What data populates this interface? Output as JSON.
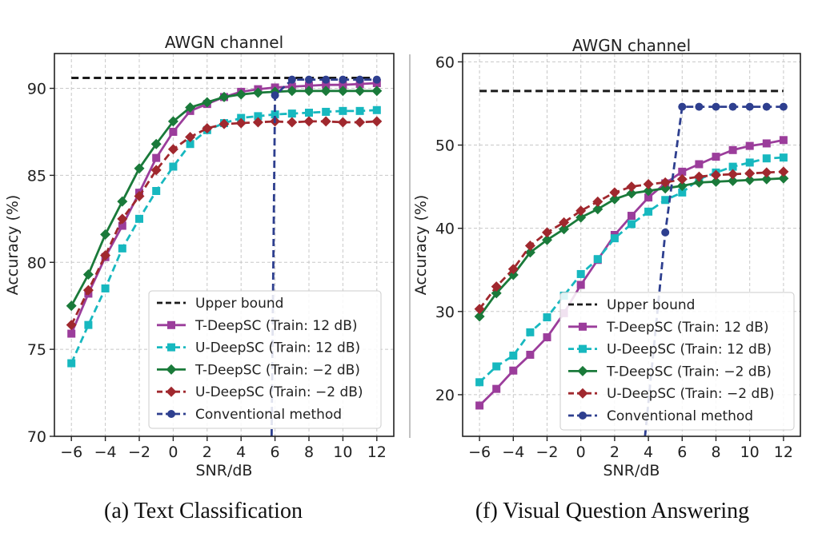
{
  "separator": true,
  "chart_data": [
    {
      "type": "line",
      "title": "AWGN channel",
      "caption": "(a) Text Classification",
      "xlabel": "SNR/dB",
      "ylabel": "Accuracy (%)",
      "xlim": [
        -7,
        13
      ],
      "ylim": [
        70,
        92
      ],
      "xticks": [
        -6,
        -4,
        -2,
        0,
        2,
        4,
        6,
        8,
        10,
        12
      ],
      "xtick_labels": [
        "−6",
        "−4",
        "−2",
        "0",
        "2",
        "4",
        "6",
        "8",
        "10",
        "12"
      ],
      "yticks": [
        70,
        75,
        80,
        85,
        90
      ],
      "ytick_labels": [
        "70",
        "75",
        "80",
        "85",
        "90"
      ],
      "grid": true,
      "legend_position": "lower-right",
      "series": [
        {
          "name": "Upper bound",
          "color": "#1a1a1a",
          "dash": "dashed",
          "marker": "none",
          "x": [
            -6,
            12
          ],
          "y": [
            90.6,
            90.6
          ]
        },
        {
          "name": "T-DeepSC (Train: 12 dB)",
          "color": "#9b3d9b",
          "dash": "solid",
          "marker": "square",
          "x": [
            -6,
            -5,
            -4,
            -3,
            -2,
            -1,
            0,
            1,
            2,
            3,
            4,
            5,
            6,
            7,
            8,
            9,
            10,
            11,
            12
          ],
          "y": [
            75.9,
            78.2,
            80.3,
            82.1,
            84.0,
            86.0,
            87.5,
            88.7,
            89.1,
            89.5,
            89.8,
            89.95,
            90.05,
            90.1,
            90.15,
            90.2,
            90.2,
            90.25,
            90.3
          ]
        },
        {
          "name": "U-DeepSC (Train: 12 dB)",
          "color": "#17b8bf",
          "dash": "dashed",
          "marker": "square",
          "x": [
            -6,
            -5,
            -4,
            -3,
            -2,
            -1,
            0,
            1,
            2,
            3,
            4,
            5,
            6,
            7,
            8,
            9,
            10,
            11,
            12
          ],
          "y": [
            74.2,
            76.4,
            78.5,
            80.8,
            82.5,
            84.1,
            85.5,
            86.8,
            87.6,
            88.0,
            88.3,
            88.4,
            88.5,
            88.55,
            88.6,
            88.65,
            88.7,
            88.7,
            88.75
          ]
        },
        {
          "name": "T-DeepSC (Train: −2 dB)",
          "color": "#1a7a3a",
          "dash": "solid",
          "marker": "diamond",
          "x": [
            -6,
            -5,
            -4,
            -3,
            -2,
            -1,
            0,
            1,
            2,
            3,
            4,
            5,
            6,
            7,
            8,
            9,
            10,
            11,
            12
          ],
          "y": [
            77.5,
            79.3,
            81.6,
            83.5,
            85.4,
            86.8,
            88.1,
            88.9,
            89.2,
            89.5,
            89.65,
            89.75,
            89.8,
            89.85,
            89.85,
            89.85,
            89.85,
            89.85,
            89.85
          ]
        },
        {
          "name": "U-DeepSC (Train: −2 dB)",
          "color": "#a0282e",
          "dash": "dashed",
          "marker": "diamond",
          "x": [
            -6,
            -5,
            -4,
            -3,
            -2,
            -1,
            0,
            1,
            2,
            3,
            4,
            5,
            6,
            7,
            8,
            9,
            10,
            11,
            12
          ],
          "y": [
            76.4,
            78.4,
            80.4,
            82.5,
            83.8,
            85.3,
            86.5,
            87.2,
            87.7,
            87.95,
            88.0,
            88.05,
            88.1,
            88.05,
            88.1,
            88.1,
            88.05,
            88.05,
            88.1
          ]
        },
        {
          "name": "Conventional method",
          "color": "#2e3f8f",
          "dash": "dashed",
          "marker": "circle",
          "x": [
            5.8,
            6,
            7,
            8,
            9,
            10,
            11,
            12
          ],
          "y": [
            70,
            89.6,
            90.5,
            90.5,
            90.5,
            90.5,
            90.5,
            90.5
          ],
          "marker_mask": [
            false,
            true,
            true,
            true,
            true,
            true,
            true,
            true
          ]
        }
      ]
    },
    {
      "type": "line",
      "title": "AWGN channel",
      "caption": "(f) Visual Question Answering",
      "xlabel": "SNR/dB",
      "ylabel": "Accuracy (%)",
      "xlim": [
        -7,
        13
      ],
      "ylim": [
        15,
        61
      ],
      "xticks": [
        -6,
        -4,
        -2,
        0,
        2,
        4,
        6,
        8,
        10,
        12
      ],
      "xtick_labels": [
        "−6",
        "−4",
        "−2",
        "0",
        "2",
        "4",
        "6",
        "8",
        "10",
        "12"
      ],
      "yticks": [
        20,
        30,
        40,
        50,
        60
      ],
      "ytick_labels": [
        "20",
        "30",
        "40",
        "50",
        "60"
      ],
      "grid": true,
      "legend_position": "lower-right",
      "series": [
        {
          "name": "Upper bound",
          "color": "#1a1a1a",
          "dash": "dashed",
          "marker": "none",
          "x": [
            -6,
            12
          ],
          "y": [
            56.5,
            56.5
          ]
        },
        {
          "name": "T-DeepSC (Train: 12 dB)",
          "color": "#9b3d9b",
          "dash": "solid",
          "marker": "square",
          "x": [
            -6,
            -5,
            -4,
            -3,
            -2,
            -1,
            0,
            1,
            2,
            3,
            4,
            5,
            6,
            7,
            8,
            9,
            10,
            11,
            12
          ],
          "y": [
            18.7,
            20.7,
            22.9,
            24.8,
            26.9,
            29.8,
            33.2,
            36.2,
            39.2,
            41.5,
            43.7,
            45.4,
            46.8,
            47.7,
            48.6,
            49.4,
            49.9,
            50.2,
            50.6
          ]
        },
        {
          "name": "U-DeepSC (Train: 12 dB)",
          "color": "#17b8bf",
          "dash": "dashed",
          "marker": "square",
          "x": [
            -6,
            -5,
            -4,
            -3,
            -2,
            -1,
            0,
            1,
            2,
            3,
            4,
            5,
            6,
            7,
            8,
            9,
            10,
            11,
            12
          ],
          "y": [
            21.5,
            23.4,
            24.7,
            27.5,
            29.3,
            31.9,
            34.5,
            36.3,
            38.8,
            40.5,
            42.0,
            43.4,
            44.3,
            45.9,
            46.7,
            47.4,
            47.9,
            48.4,
            48.5
          ]
        },
        {
          "name": "T-DeepSC (Train: −2 dB)",
          "color": "#1a7a3a",
          "dash": "solid",
          "marker": "diamond",
          "x": [
            -6,
            -5,
            -4,
            -3,
            -2,
            -1,
            0,
            1,
            2,
            3,
            4,
            5,
            6,
            7,
            8,
            9,
            10,
            11,
            12
          ],
          "y": [
            29.4,
            32.2,
            34.4,
            37.1,
            38.6,
            39.9,
            41.3,
            42.3,
            43.5,
            44.2,
            44.5,
            44.8,
            45.1,
            45.5,
            45.6,
            45.7,
            45.8,
            45.9,
            46.0
          ]
        },
        {
          "name": "U-DeepSC (Train: −2 dB)",
          "color": "#a0282e",
          "dash": "dashed",
          "marker": "diamond",
          "x": [
            -6,
            -5,
            -4,
            -3,
            -2,
            -1,
            0,
            1,
            2,
            3,
            4,
            5,
            6,
            7,
            8,
            9,
            10,
            11,
            12
          ],
          "y": [
            30.3,
            33.0,
            35.1,
            37.9,
            39.5,
            40.7,
            42.1,
            43.2,
            44.3,
            45.0,
            45.3,
            45.5,
            45.9,
            46.2,
            46.4,
            46.5,
            46.6,
            46.7,
            46.8
          ]
        },
        {
          "name": "Conventional method",
          "color": "#2e3f8f",
          "dash": "dashed",
          "marker": "circle",
          "x": [
            3.8,
            5,
            6,
            7,
            8,
            9,
            10,
            11,
            12
          ],
          "y": [
            15,
            39.5,
            54.6,
            54.6,
            54.6,
            54.6,
            54.6,
            54.6,
            54.6
          ],
          "marker_mask": [
            false,
            true,
            true,
            true,
            true,
            true,
            true,
            true,
            true
          ]
        }
      ]
    }
  ]
}
